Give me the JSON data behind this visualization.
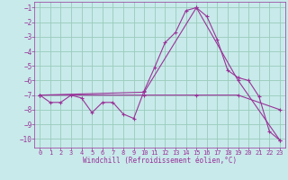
{
  "xlabel": "Windchill (Refroidissement éolien,°C)",
  "xlim": [
    -0.5,
    23.5
  ],
  "ylim": [
    -10.6,
    -0.6
  ],
  "yticks": [
    -1,
    -2,
    -3,
    -4,
    -5,
    -6,
    -7,
    -8,
    -9,
    -10
  ],
  "xticks": [
    0,
    1,
    2,
    3,
    4,
    5,
    6,
    7,
    8,
    9,
    10,
    11,
    12,
    13,
    14,
    15,
    16,
    17,
    18,
    19,
    20,
    21,
    22,
    23
  ],
  "bg_color": "#c8eaea",
  "line_color": "#993399",
  "grid_color": "#99ccbb",
  "line1_x": [
    0,
    1,
    2,
    3,
    4,
    5,
    6,
    7,
    8,
    9,
    10,
    11,
    12,
    13,
    14,
    15,
    16,
    17,
    18,
    19,
    20,
    21,
    22,
    23
  ],
  "line1_y": [
    -7.0,
    -7.5,
    -7.5,
    -7.0,
    -7.2,
    -8.2,
    -7.5,
    -7.5,
    -8.3,
    -8.6,
    -6.7,
    -5.1,
    -3.4,
    -2.7,
    -1.2,
    -1.0,
    -1.6,
    -3.2,
    -5.3,
    -5.8,
    -6.0,
    -7.1,
    -9.5,
    -10.1
  ],
  "line2_x": [
    0,
    10,
    15,
    19,
    23
  ],
  "line2_y": [
    -7.0,
    -6.8,
    -1.0,
    -6.0,
    -10.1
  ],
  "line3_x": [
    0,
    10,
    15,
    19,
    23
  ],
  "line3_y": [
    -7.0,
    -7.0,
    -7.0,
    -7.0,
    -8.0
  ]
}
